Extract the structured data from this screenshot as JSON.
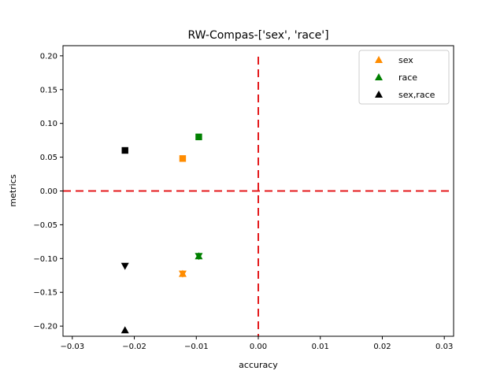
{
  "chart_data": {
    "type": "scatter",
    "title": "RW-Compas-['sex', 'race']",
    "xlabel": "accuracy",
    "ylabel": "metrics",
    "xlim": [
      -0.0315,
      0.0315
    ],
    "ylim": [
      -0.215,
      0.215
    ],
    "xticks": [
      -0.03,
      -0.02,
      -0.01,
      0.0,
      0.01,
      0.02,
      0.03
    ],
    "xtick_labels": [
      "−0.03",
      "−0.02",
      "−0.01",
      "0.00",
      "0.01",
      "0.02",
      "0.03"
    ],
    "yticks": [
      -0.2,
      -0.15,
      -0.1,
      -0.05,
      0.0,
      0.05,
      0.1,
      0.15,
      0.2
    ],
    "ytick_labels": [
      "−0.20",
      "−0.15",
      "−0.10",
      "−0.05",
      "0.00",
      "0.05",
      "0.10",
      "0.15",
      "0.20"
    ],
    "grid": false,
    "legend_position": "top-right",
    "reference_lines": [
      {
        "orientation": "horizontal",
        "value": 0.0,
        "color": "#e41a1c",
        "style": "dashed"
      },
      {
        "orientation": "vertical",
        "value": 0.0,
        "color": "#e41a1c",
        "style": "dashed"
      }
    ],
    "series": [
      {
        "name": "sex",
        "color": "#ff8c00",
        "points": [
          {
            "x": -0.0122,
            "y": 0.048,
            "marker": "square"
          },
          {
            "x": -0.0122,
            "y": -0.1225,
            "marker": "triangle-up"
          },
          {
            "x": -0.0122,
            "y": -0.1225,
            "marker": "triangle-down"
          }
        ]
      },
      {
        "name": "race",
        "color": "#008000",
        "points": [
          {
            "x": -0.0096,
            "y": 0.08,
            "marker": "square"
          },
          {
            "x": -0.0096,
            "y": -0.0965,
            "marker": "triangle-up"
          },
          {
            "x": -0.0096,
            "y": -0.0965,
            "marker": "triangle-down"
          }
        ]
      },
      {
        "name": "sex,race",
        "color": "#000000",
        "points": [
          {
            "x": -0.0215,
            "y": 0.06,
            "marker": "square"
          },
          {
            "x": -0.0215,
            "y": -0.111,
            "marker": "triangle-down"
          },
          {
            "x": -0.0215,
            "y": -0.206,
            "marker": "triangle-up"
          }
        ]
      }
    ]
  }
}
